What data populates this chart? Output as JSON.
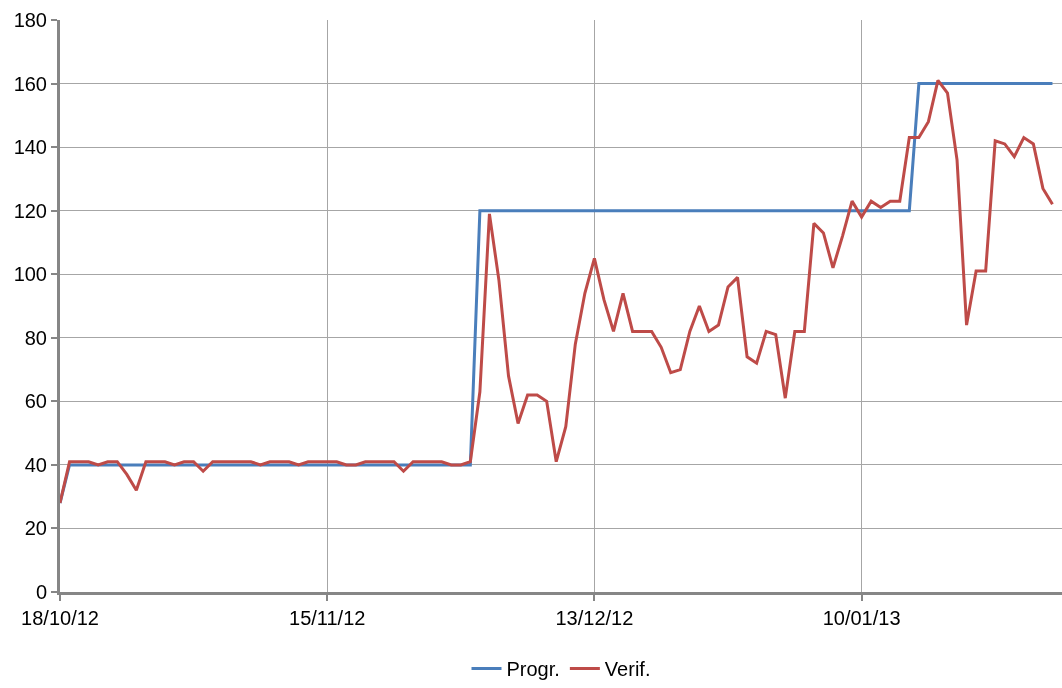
{
  "chart_data": {
    "type": "line",
    "x": [
      "2012-10-18",
      "2012-10-19",
      "2012-10-20",
      "2012-10-21",
      "2012-10-22",
      "2012-10-23",
      "2012-10-24",
      "2012-10-25",
      "2012-10-26",
      "2012-10-27",
      "2012-10-28",
      "2012-10-29",
      "2012-10-30",
      "2012-10-31",
      "2012-11-01",
      "2012-11-02",
      "2012-11-03",
      "2012-11-04",
      "2012-11-05",
      "2012-11-06",
      "2012-11-07",
      "2012-11-08",
      "2012-11-09",
      "2012-11-10",
      "2012-11-11",
      "2012-11-12",
      "2012-11-13",
      "2012-11-14",
      "2012-11-15",
      "2012-11-16",
      "2012-11-17",
      "2012-11-18",
      "2012-11-19",
      "2012-11-20",
      "2012-11-21",
      "2012-11-22",
      "2012-11-23",
      "2012-11-24",
      "2012-11-25",
      "2012-11-26",
      "2012-11-27",
      "2012-11-28",
      "2012-11-29",
      "2012-11-30",
      "2012-12-01",
      "2012-12-02",
      "2012-12-03",
      "2012-12-04",
      "2012-12-05",
      "2012-12-06",
      "2012-12-07",
      "2012-12-08",
      "2012-12-09",
      "2012-12-10",
      "2012-12-11",
      "2012-12-12",
      "2012-12-13",
      "2012-12-14",
      "2012-12-15",
      "2012-12-16",
      "2012-12-17",
      "2012-12-18",
      "2012-12-19",
      "2012-12-20",
      "2012-12-21",
      "2012-12-22",
      "2012-12-23",
      "2012-12-24",
      "2012-12-25",
      "2012-12-26",
      "2012-12-27",
      "2012-12-28",
      "2012-12-29",
      "2012-12-30",
      "2012-12-31",
      "2013-01-01",
      "2013-01-02",
      "2013-01-03",
      "2013-01-04",
      "2013-01-05",
      "2013-01-06",
      "2013-01-07",
      "2013-01-08",
      "2013-01-09",
      "2013-01-10",
      "2013-01-11",
      "2013-01-12",
      "2013-01-13",
      "2013-01-14",
      "2013-01-15",
      "2013-01-16",
      "2013-01-17",
      "2013-01-18",
      "2013-01-19",
      "2013-01-20",
      "2013-01-21",
      "2013-01-22",
      "2013-01-23",
      "2013-01-24",
      "2013-01-25",
      "2013-01-26",
      "2013-01-27",
      "2013-01-28",
      "2013-01-29",
      "2013-01-30"
    ],
    "series": [
      {
        "name": "Progr.",
        "color": "#4a7ebb",
        "values": [
          28,
          40,
          40,
          40,
          40,
          40,
          40,
          40,
          40,
          40,
          40,
          40,
          40,
          40,
          40,
          40,
          40,
          40,
          40,
          40,
          40,
          40,
          40,
          40,
          40,
          40,
          40,
          40,
          40,
          40,
          40,
          40,
          40,
          40,
          40,
          40,
          40,
          40,
          40,
          40,
          40,
          40,
          40,
          40,
          120,
          120,
          120,
          120,
          120,
          120,
          120,
          120,
          120,
          120,
          120,
          120,
          120,
          120,
          120,
          120,
          120,
          120,
          120,
          120,
          120,
          120,
          120,
          120,
          120,
          120,
          120,
          120,
          120,
          120,
          120,
          120,
          120,
          120,
          120,
          120,
          120,
          120,
          120,
          120,
          120,
          120,
          120,
          120,
          120,
          120,
          160,
          160,
          160,
          160,
          160,
          160,
          160,
          160,
          160,
          160,
          160,
          160,
          160,
          160,
          160
        ]
      },
      {
        "name": "Verif.",
        "color": "#be4b48",
        "values": [
          28,
          41,
          41,
          41,
          40,
          41,
          41,
          37,
          32,
          41,
          41,
          41,
          40,
          41,
          41,
          38,
          41,
          41,
          41,
          41,
          41,
          40,
          41,
          41,
          41,
          40,
          41,
          41,
          41,
          41,
          40,
          40,
          41,
          41,
          41,
          41,
          38,
          41,
          41,
          41,
          41,
          40,
          40,
          41,
          63,
          119,
          98,
          68,
          53,
          62,
          62,
          60,
          41,
          52,
          78,
          94,
          105,
          92,
          82,
          94,
          82,
          82,
          82,
          77,
          69,
          70,
          82,
          90,
          82,
          84,
          96,
          99,
          74,
          72,
          82,
          81,
          61,
          82,
          82,
          116,
          113,
          102,
          112,
          123,
          118,
          123,
          121,
          123,
          123,
          143,
          143,
          148,
          161,
          157,
          136,
          84,
          101,
          101,
          142,
          141,
          137,
          143,
          141,
          127,
          122
        ]
      }
    ],
    "xlim": [
      "2012-10-18",
      "2013-01-31"
    ],
    "xticks": [
      {
        "value": "2012-10-18",
        "label": "18/10/12"
      },
      {
        "value": "2012-11-15",
        "label": "15/11/12"
      },
      {
        "value": "2012-12-13",
        "label": "13/12/12"
      },
      {
        "value": "2013-01-10",
        "label": "10/01/13"
      }
    ],
    "ylim": [
      0,
      180
    ],
    "yticks": [
      0,
      20,
      40,
      60,
      80,
      100,
      120,
      140,
      160,
      180
    ],
    "grid": true,
    "legend": "bottom",
    "marker": "none",
    "line_style": "solid"
  }
}
